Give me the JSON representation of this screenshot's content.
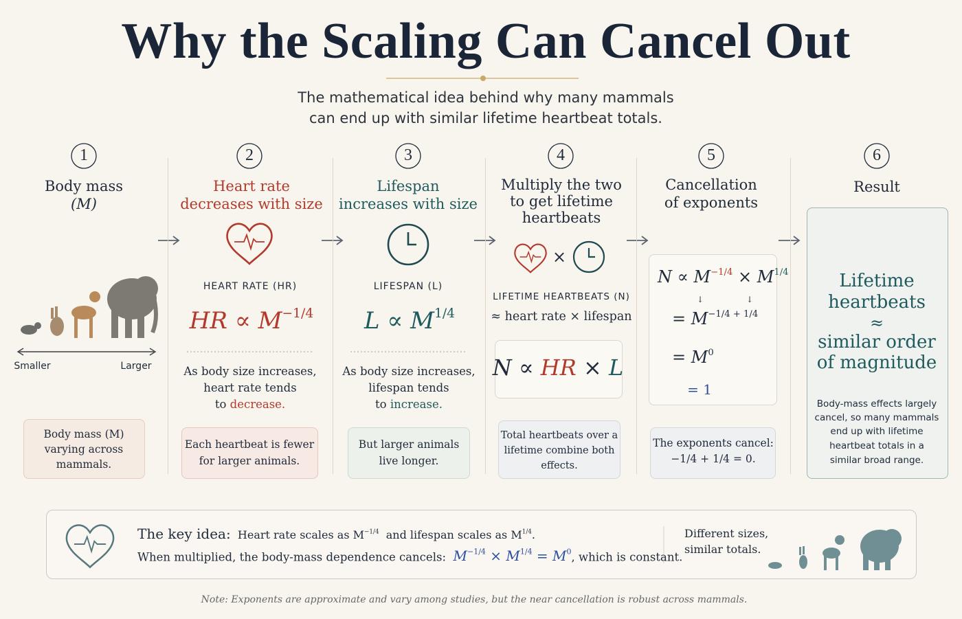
{
  "header": {
    "title": "Why the Scaling Can Cancel Out",
    "subtitle": [
      "The mathematical idea behind why many mammals",
      "can end up with similar lifetime heartbeat totals."
    ]
  },
  "steps": [
    {
      "number": 1,
      "title": [
        "Body mass",
        "(M)"
      ],
      "scale": {
        "left": "Smaller",
        "right": "Larger"
      },
      "note": [
        "Body mass (M)",
        "varying across",
        "mammals."
      ]
    },
    {
      "number": 2,
      "title": [
        "Heart rate",
        "decreases with size"
      ],
      "label": "HEART RATE (HR)",
      "formula": {
        "base": "HR ∝ M",
        "exponent": "−1/4"
      },
      "description": [
        "As body size increases,",
        "heart rate tends",
        "to"
      ],
      "highlight": "decrease.",
      "note": [
        "Each heartbeat is fewer",
        "for larger animals."
      ]
    },
    {
      "number": 3,
      "title": [
        "Lifespan",
        "increases with size"
      ],
      "label": "LIFESPAN (L)",
      "formula": {
        "base": "L ∝ M",
        "exponent": "1/4"
      },
      "description": [
        "As body size increases,",
        "lifespan tends",
        "to"
      ],
      "highlight": "increase.",
      "note": [
        "But larger animals",
        "live longer."
      ]
    },
    {
      "number": 4,
      "title": [
        "Multiply the two",
        "to get lifetime",
        "heartbeats"
      ],
      "operator": "×",
      "label": "LIFETIME HEARTBEATS (N)",
      "relation": "≈ heart rate × lifespan",
      "formula": {
        "lhs": "N ∝",
        "hr": "HR",
        "times": "×",
        "l": "L"
      },
      "note": [
        "Total heartbeats over a",
        "lifetime combine both",
        "effects."
      ]
    },
    {
      "number": 5,
      "title": [
        "Cancellation",
        "of exponents"
      ],
      "equations": {
        "line1": {
          "lhs": "N ∝ M",
          "exp1": "−1/4",
          "times": "× M",
          "exp2": "1/4"
        },
        "arrow": "↓",
        "line2": {
          "base": "= M",
          "exp": "−1/4 + 1/4"
        },
        "line3": {
          "base": "= M",
          "exp": "0"
        },
        "line4": "= 1"
      },
      "note": [
        "The exponents cancel:",
        "−1/4 + 1/4 = 0."
      ]
    },
    {
      "number": 6,
      "title": [
        "Result"
      ],
      "result": [
        "Lifetime",
        "heartbeats",
        "≈",
        "similar order",
        "of magnitude"
      ],
      "description": [
        "Body-mass effects largely",
        "cancel, so many mammals",
        "end up with lifetime",
        "heartbeat totals in a",
        "similar broad range."
      ]
    }
  ],
  "key_idea": {
    "label": "The key idea:",
    "line1": {
      "a": "Heart rate scales as M",
      "a_exp": "−1/4",
      "b": "and lifespan scales as M",
      "b_exp": "1/4",
      "end": "."
    },
    "line2": {
      "a": "When multiplied, the body-mass dependence cancels:",
      "m1": "M",
      "e1": "−1/4",
      "x": "× M",
      "e2": "1/4",
      "eq": "= M",
      "e3": "0",
      "end": ", which is constant."
    },
    "aside": [
      "Different sizes,",
      "similar totals."
    ]
  },
  "footnote": "Note: Exponents are approximate and vary among studies, but the near cancellation is robust across mammals."
}
